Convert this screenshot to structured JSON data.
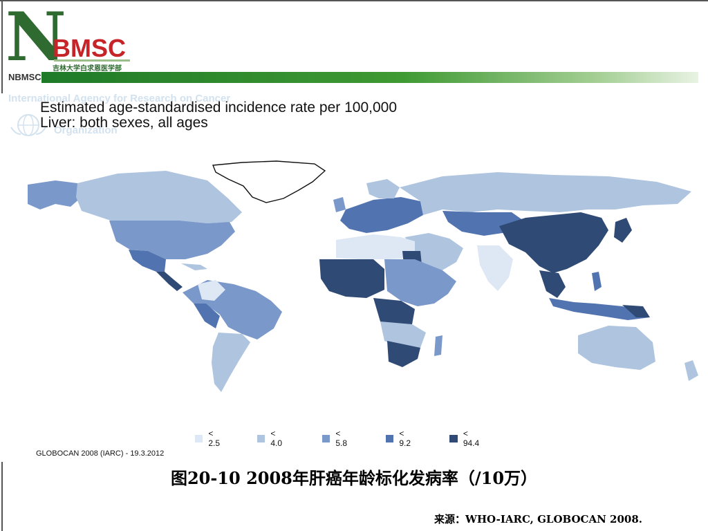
{
  "logo": {
    "letter": "N",
    "name": "BMSC",
    "subtitle": "吉林大学白求恩医学部",
    "short": "NBMSC"
  },
  "map": {
    "watermark_line1": "International Agency for Research on Cancer",
    "watermark_line2": "Organization",
    "title_line1": "Estimated age-standardised incidence rate per 100,000",
    "title_line2": "Liver: both sexes, all ages",
    "source_note": "GLOBOCAN 2008 (IARC) - 19.3.2012",
    "legend": [
      {
        "label": "< 2.5",
        "color": "#dde8f4"
      },
      {
        "label": "< 4.0",
        "color": "#aec4df"
      },
      {
        "label": "< 5.8",
        "color": "#7a98c9"
      },
      {
        "label": "< 9.2",
        "color": "#5174b0"
      },
      {
        "label": "< 94.4",
        "color": "#2f4a75"
      }
    ]
  },
  "caption": "图20-10  2008年肝癌年龄标化发病率（/10万）",
  "source": "来源：WHO-IARC, GLOBOCAN 2008."
}
